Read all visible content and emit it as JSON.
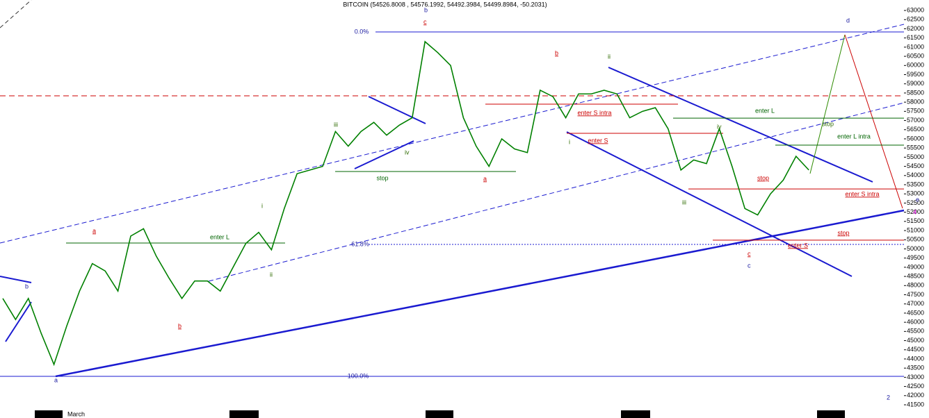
{
  "chart_data": {
    "type": "line",
    "title": "BITCOIN (54526.8008 , 54576.1992, 54492.3984, 54499.8984, -50.2031)",
    "categories": [
      null,
      null,
      null,
      null,
      null,
      "March",
      null,
      null,
      null,
      null,
      null,
      null,
      null,
      null,
      null,
      null,
      null,
      null,
      null,
      null,
      null,
      null,
      null,
      null,
      null,
      null,
      null,
      null,
      null,
      null,
      null,
      null,
      null,
      null,
      null,
      null,
      null,
      null,
      null,
      null,
      null,
      null,
      null,
      null,
      null,
      null,
      null,
      null,
      null,
      null,
      null,
      null,
      null,
      null,
      null,
      null,
      null,
      null,
      null,
      null,
      null,
      null,
      null,
      null
    ],
    "series": [
      {
        "color": "#008000",
        "values": [
          47300,
          46150,
          47300,
          45400,
          43700,
          45800,
          47700,
          49200,
          48800,
          47700,
          50700,
          51100,
          49600,
          48400,
          47300,
          48250,
          48250,
          47700,
          49000,
          50300,
          50900,
          49950,
          52200,
          54100,
          54300,
          54500,
          56400,
          55600,
          56400,
          56900,
          56200,
          56750,
          57150,
          61300,
          60700,
          60000,
          57150,
          55600,
          54500,
          56000,
          55450,
          55250,
          58650,
          58300,
          57150,
          58450,
          58450,
          58650,
          58450,
          57150,
          57500,
          57700,
          56550,
          54300,
          54850,
          54650,
          56550,
          54500,
          52200,
          51850,
          53000,
          53750,
          55050,
          54300
        ]
      }
    ],
    "ylim": [
      41235,
      63570
    ],
    "yticks": [
      41500,
      42000,
      42500,
      43000,
      43500,
      44000,
      44500,
      45000,
      45500,
      46000,
      46500,
      47000,
      47500,
      48000,
      48500,
      49000,
      49500,
      50000,
      50500,
      51000,
      51500,
      52000,
      52500,
      53000,
      53500,
      54000,
      54500,
      55000,
      55500,
      56000,
      56500,
      57000,
      57500,
      58000,
      58500,
      59000,
      59500,
      60000,
      60500,
      61000,
      61500,
      62000,
      62500,
      63000
    ],
    "fib_levels": [
      {
        "label": "0.0%",
        "value": 61830
      },
      {
        "label": "61.8%",
        "value": 50245
      },
      {
        "label": "100.0%",
        "value": 43050
      }
    ],
    "red_levels": [
      58345,
      43050
    ],
    "levels": [
      {
        "text": "enter L",
        "value": 50320,
        "color": "#006400"
      },
      {
        "text": "stop",
        "value": 54220,
        "color": "#006400"
      },
      {
        "text": "enter S intra",
        "value": 57890,
        "color": "#cc0000"
      },
      {
        "text": "enter S",
        "value": 56300,
        "color": "#cc0000"
      },
      {
        "text": "enter L",
        "value": 57130,
        "color": "#006400"
      },
      {
        "text": "enter L intra",
        "value": 55660,
        "color": "#006400"
      },
      {
        "text": "enter S intra",
        "value": 53270,
        "color": "#cc0000"
      },
      {
        "text": "stop",
        "value": 50475,
        "color": "#cc0000"
      }
    ],
    "annotations": [
      "b",
      "a",
      "b",
      "a",
      "i",
      "ii",
      "iii",
      "iv",
      "b",
      "c",
      "a",
      "b",
      "ii",
      "i",
      "iii",
      "iv",
      "c",
      "c",
      "d",
      "e",
      "4",
      "2",
      "stop",
      "stop",
      "enter S"
    ]
  }
}
